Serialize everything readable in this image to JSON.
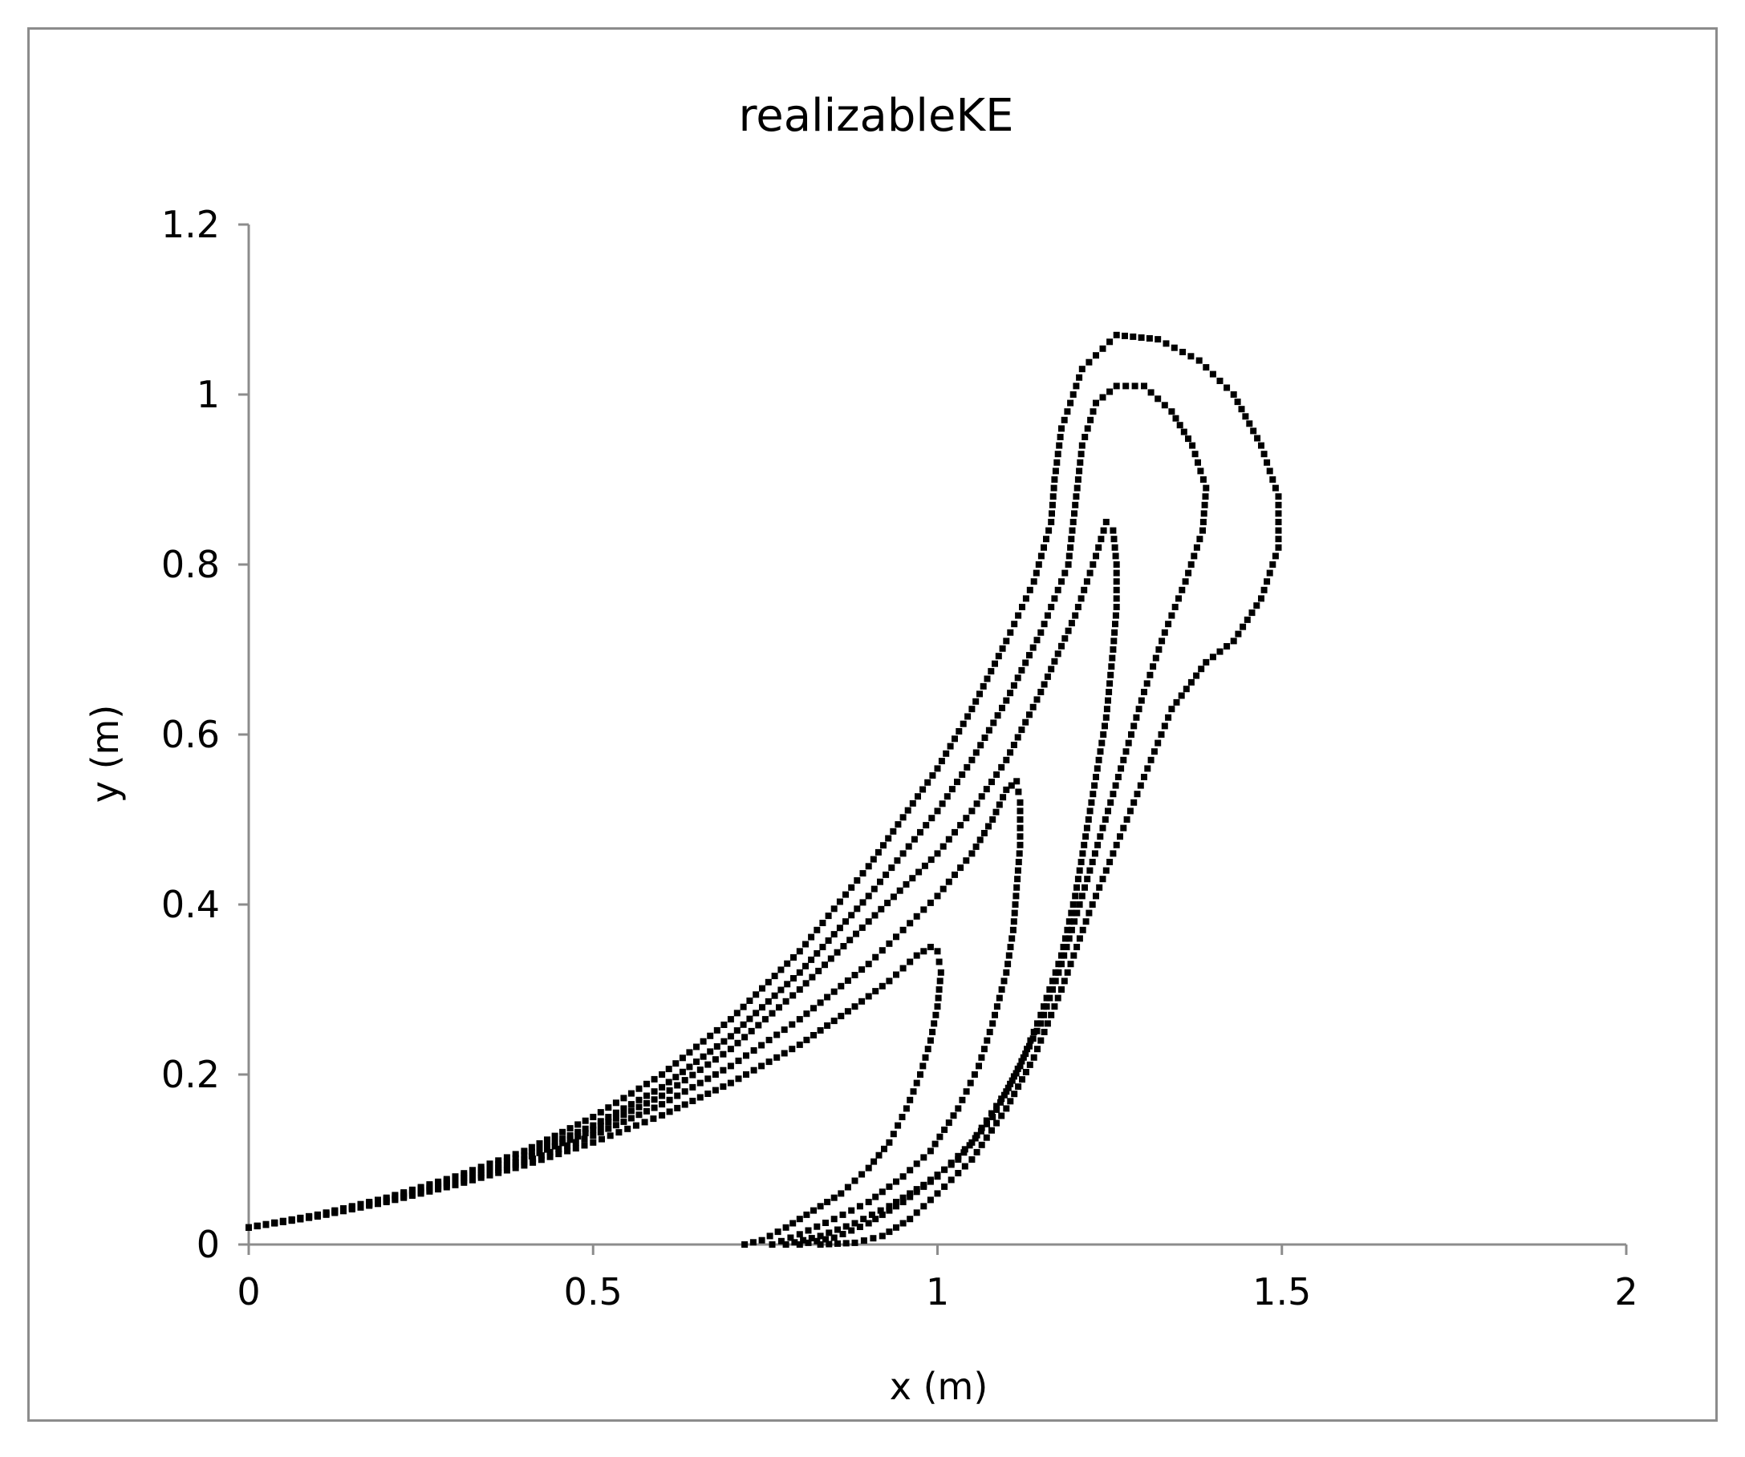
{
  "chart_data": {
    "type": "scatter",
    "title": "realizableKE",
    "xlabel": "x (m)",
    "ylabel": "y (m)",
    "xlim": [
      0,
      2
    ],
    "ylim": [
      0,
      1.2
    ],
    "x_ticks": [
      "0",
      "0.5",
      "1",
      "1.5",
      "2"
    ],
    "y_ticks": [
      "0",
      "0.2",
      "0.4",
      "0.6",
      "0.8",
      "1",
      "1.2"
    ],
    "grid": false,
    "marker_color": "#000000",
    "axis_color": "#8c8c8c",
    "series": [
      {
        "points": [
          [
            0,
            0.02
          ],
          [
            0.1,
            0.035
          ],
          [
            0.2,
            0.055
          ],
          [
            0.3,
            0.08
          ],
          [
            0.4,
            0.11
          ],
          [
            0.5,
            0.15
          ],
          [
            0.6,
            0.2
          ],
          [
            0.7,
            0.265
          ],
          [
            0.8,
            0.345
          ],
          [
            0.9,
            0.445
          ],
          [
            1.0,
            0.56
          ],
          [
            1.05,
            0.63
          ],
          [
            1.1,
            0.71
          ],
          [
            1.14,
            0.78
          ],
          [
            1.165,
            0.85
          ],
          [
            1.17,
            0.9
          ],
          [
            1.18,
            0.96
          ],
          [
            1.21,
            1.03
          ],
          [
            1.26,
            1.07
          ],
          [
            1.32,
            1.065
          ],
          [
            1.38,
            1.04
          ],
          [
            1.43,
            1.0
          ],
          [
            1.47,
            0.94
          ],
          [
            1.495,
            0.88
          ],
          [
            1.495,
            0.82
          ],
          [
            1.47,
            0.76
          ],
          [
            1.43,
            0.71
          ],
          [
            1.39,
            0.685
          ],
          [
            1.34,
            0.63
          ],
          [
            1.3,
            0.55
          ],
          [
            1.26,
            0.47
          ],
          [
            1.22,
            0.39
          ],
          [
            1.18,
            0.3
          ],
          [
            1.14,
            0.22
          ],
          [
            1.1,
            0.16
          ],
          [
            1.05,
            0.1
          ],
          [
            1.0,
            0.06
          ],
          [
            0.96,
            0.03
          ],
          [
            0.92,
            0.01
          ],
          [
            0.88,
            0.002
          ],
          [
            0.83,
            0.0
          ]
        ]
      },
      {
        "points": [
          [
            0,
            0.02
          ],
          [
            0.1,
            0.035
          ],
          [
            0.2,
            0.054
          ],
          [
            0.3,
            0.078
          ],
          [
            0.4,
            0.105
          ],
          [
            0.5,
            0.14
          ],
          [
            0.6,
            0.185
          ],
          [
            0.7,
            0.245
          ],
          [
            0.8,
            0.32
          ],
          [
            0.9,
            0.41
          ],
          [
            1.0,
            0.51
          ],
          [
            1.05,
            0.57
          ],
          [
            1.1,
            0.64
          ],
          [
            1.15,
            0.72
          ],
          [
            1.19,
            0.8
          ],
          [
            1.2,
            0.87
          ],
          [
            1.21,
            0.94
          ],
          [
            1.23,
            0.99
          ],
          [
            1.26,
            1.01
          ],
          [
            1.3,
            1.01
          ],
          [
            1.34,
            0.98
          ],
          [
            1.37,
            0.94
          ],
          [
            1.39,
            0.89
          ],
          [
            1.385,
            0.84
          ],
          [
            1.36,
            0.78
          ],
          [
            1.33,
            0.72
          ],
          [
            1.3,
            0.65
          ],
          [
            1.27,
            0.57
          ],
          [
            1.24,
            0.49
          ],
          [
            1.21,
            0.41
          ],
          [
            1.18,
            0.33
          ],
          [
            1.15,
            0.26
          ],
          [
            1.1,
            0.18
          ],
          [
            1.05,
            0.12
          ],
          [
            1.0,
            0.08
          ],
          [
            0.95,
            0.05
          ],
          [
            0.9,
            0.025
          ],
          [
            0.85,
            0.008
          ],
          [
            0.8,
            0.0
          ]
        ]
      },
      {
        "points": [
          [
            0,
            0.02
          ],
          [
            0.1,
            0.034
          ],
          [
            0.2,
            0.052
          ],
          [
            0.3,
            0.075
          ],
          [
            0.4,
            0.1
          ],
          [
            0.5,
            0.135
          ],
          [
            0.6,
            0.175
          ],
          [
            0.7,
            0.23
          ],
          [
            0.8,
            0.3
          ],
          [
            0.9,
            0.38
          ],
          [
            1.0,
            0.46
          ],
          [
            1.05,
            0.51
          ],
          [
            1.1,
            0.57
          ],
          [
            1.15,
            0.65
          ],
          [
            1.2,
            0.74
          ],
          [
            1.23,
            0.81
          ],
          [
            1.245,
            0.85
          ],
          [
            1.255,
            0.84
          ],
          [
            1.26,
            0.8
          ],
          [
            1.26,
            0.75
          ],
          [
            1.255,
            0.7
          ],
          [
            1.245,
            0.62
          ],
          [
            1.23,
            0.55
          ],
          [
            1.215,
            0.48
          ],
          [
            1.2,
            0.41
          ],
          [
            1.18,
            0.34
          ],
          [
            1.15,
            0.27
          ],
          [
            1.12,
            0.21
          ],
          [
            1.08,
            0.15
          ],
          [
            1.03,
            0.1
          ],
          [
            0.98,
            0.07
          ],
          [
            0.93,
            0.045
          ],
          [
            0.88,
            0.025
          ],
          [
            0.83,
            0.01
          ],
          [
            0.78,
            0.0
          ]
        ]
      },
      {
        "points": [
          [
            0,
            0.02
          ],
          [
            0.1,
            0.034
          ],
          [
            0.2,
            0.051
          ],
          [
            0.3,
            0.072
          ],
          [
            0.4,
            0.097
          ],
          [
            0.5,
            0.128
          ],
          [
            0.6,
            0.165
          ],
          [
            0.7,
            0.21
          ],
          [
            0.8,
            0.265
          ],
          [
            0.9,
            0.33
          ],
          [
            0.95,
            0.37
          ],
          [
            1.0,
            0.41
          ],
          [
            1.05,
            0.46
          ],
          [
            1.08,
            0.5
          ],
          [
            1.1,
            0.535
          ],
          [
            1.115,
            0.545
          ],
          [
            1.12,
            0.52
          ],
          [
            1.12,
            0.47
          ],
          [
            1.115,
            0.42
          ],
          [
            1.11,
            0.37
          ],
          [
            1.1,
            0.32
          ],
          [
            1.08,
            0.26
          ],
          [
            1.06,
            0.21
          ],
          [
            1.03,
            0.16
          ],
          [
            0.99,
            0.11
          ],
          [
            0.95,
            0.08
          ],
          [
            0.9,
            0.05
          ],
          [
            0.85,
            0.03
          ],
          [
            0.8,
            0.012
          ],
          [
            0.76,
            0.0
          ]
        ]
      },
      {
        "points": [
          [
            0,
            0.02
          ],
          [
            0.1,
            0.033
          ],
          [
            0.2,
            0.05
          ],
          [
            0.3,
            0.07
          ],
          [
            0.4,
            0.093
          ],
          [
            0.5,
            0.12
          ],
          [
            0.6,
            0.152
          ],
          [
            0.7,
            0.19
          ],
          [
            0.8,
            0.235
          ],
          [
            0.88,
            0.28
          ],
          [
            0.93,
            0.31
          ],
          [
            0.97,
            0.34
          ],
          [
            0.99,
            0.35
          ],
          [
            1.0,
            0.345
          ],
          [
            1.005,
            0.32
          ],
          [
            1.0,
            0.28
          ],
          [
            0.99,
            0.24
          ],
          [
            0.975,
            0.2
          ],
          [
            0.955,
            0.16
          ],
          [
            0.93,
            0.12
          ],
          [
            0.9,
            0.09
          ],
          [
            0.86,
            0.06
          ],
          [
            0.82,
            0.04
          ],
          [
            0.78,
            0.02
          ],
          [
            0.745,
            0.005
          ],
          [
            0.72,
            0.0
          ]
        ]
      }
    ]
  }
}
